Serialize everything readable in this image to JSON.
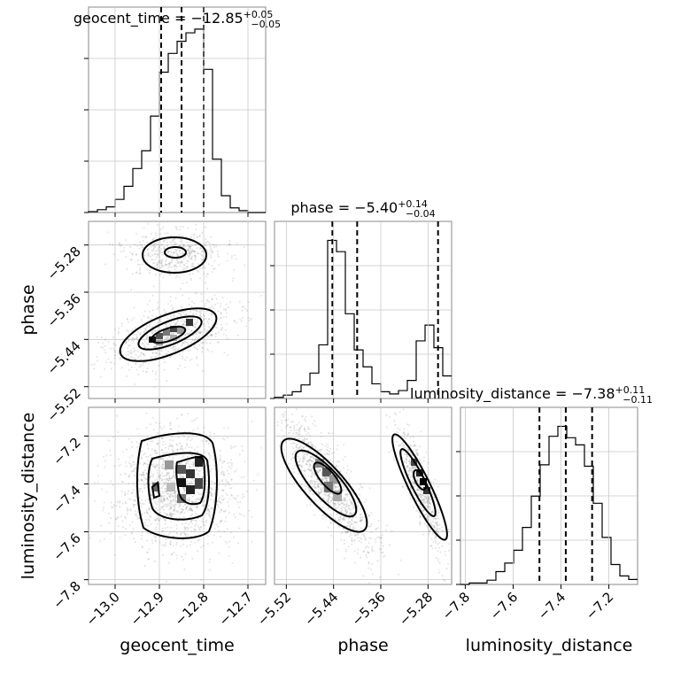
{
  "chart_data": [
    {
      "type": "histogram",
      "panel": "geocent_time",
      "title_param": "geocent_time",
      "title_median": "−12.85",
      "title_plus": "+0.05",
      "title_minus": "−0.05",
      "xlim": [
        -13.06,
        -12.66
      ],
      "quantiles": [
        -12.896,
        -12.85,
        -12.8
      ],
      "bins": [
        -13.06,
        -13.04,
        -13.02,
        -13.0,
        -12.98,
        -12.96,
        -12.94,
        -12.92,
        -12.9,
        -12.88,
        -12.86,
        -12.84,
        -12.82,
        -12.8,
        -12.78,
        -12.76,
        -12.74,
        -12.72,
        -12.7,
        -12.68,
        -12.66
      ],
      "counts": [
        1,
        3,
        6,
        14,
        28,
        47,
        66,
        103,
        150,
        170,
        183,
        192,
        196,
        153,
        57,
        18,
        5,
        2,
        0,
        0
      ],
      "color": "#000000"
    },
    {
      "type": "histogram",
      "panel": "phase",
      "title_param": "phase",
      "title_median": "−5.40",
      "title_plus": "+0.14",
      "title_minus": "−0.04",
      "xlim": [
        -5.54,
        -5.24
      ],
      "quantiles": [
        -5.442,
        -5.4,
        -5.263
      ],
      "bins": [
        -5.54,
        -5.525,
        -5.51,
        -5.495,
        -5.48,
        -5.465,
        -5.45,
        -5.435,
        -5.42,
        -5.405,
        -5.39,
        -5.375,
        -5.36,
        -5.345,
        -5.33,
        -5.315,
        -5.3,
        -5.285,
        -5.27,
        -5.255,
        -5.24
      ],
      "counts": [
        2,
        6,
        12,
        24,
        45,
        95,
        280,
        260,
        150,
        86,
        56,
        26,
        12,
        8,
        14,
        32,
        102,
        130,
        90,
        40
      ],
      "color": "#000000"
    },
    {
      "type": "histogram",
      "panel": "luminosity_distance",
      "title_param": "luminosity_distance",
      "title_median": "−7.38",
      "title_plus": "+0.11",
      "title_minus": "−0.11",
      "xlim": [
        -7.82,
        -7.08
      ],
      "quantiles": [
        -7.49,
        -7.38,
        -7.27
      ],
      "bins": [
        -7.82,
        -7.783,
        -7.746,
        -7.709,
        -7.672,
        -7.635,
        -7.598,
        -7.561,
        -7.524,
        -7.487,
        -7.45,
        -7.413,
        -7.376,
        -7.339,
        -7.302,
        -7.265,
        -7.228,
        -7.191,
        -7.154,
        -7.117,
        -7.08
      ],
      "counts": [
        0,
        2,
        2,
        6,
        18,
        30,
        48,
        80,
        124,
        168,
        208,
        222,
        206,
        196,
        166,
        114,
        66,
        28,
        12,
        7
      ],
      "color": "#000000"
    },
    {
      "type": "scatter",
      "panel": "phase_vs_geocent_time",
      "xlim": [
        -13.06,
        -12.66
      ],
      "ylim": [
        -5.54,
        -5.24
      ],
      "density": "two modes: upper mode around phase −5.28 near geocent_time −12.88 to −12.84; lower mode around phase −5.41 near geocent_time −12.92 to −12.82 with tail toward −13.0"
    },
    {
      "type": "scatter",
      "panel": "luminosity_distance_vs_geocent_time",
      "xlim": [
        -13.06,
        -12.66
      ],
      "ylim": [
        -7.82,
        -7.08
      ],
      "density": "single mode around geocent_time −12.82, luminosity_distance −7.33"
    },
    {
      "type": "scatter",
      "panel": "luminosity_distance_vs_phase",
      "xlim": [
        -5.54,
        -5.24
      ],
      "ylim": [
        -7.82,
        -7.08
      ],
      "density": "two elongated anti-correlated modes near phase −5.44 and −5.27"
    }
  ],
  "axes": {
    "bottom_labels": [
      "geocent_time",
      "phase",
      "luminosity_distance"
    ],
    "left_labels": [
      "phase",
      "luminosity_distance"
    ],
    "geocent_ticks": [
      {
        "v": -13.0,
        "label": "−13.0"
      },
      {
        "v": -12.9,
        "label": "−12.9"
      },
      {
        "v": -12.8,
        "label": "−12.8"
      },
      {
        "v": -12.7,
        "label": "−12.7"
      }
    ],
    "phase_ticks": [
      {
        "v": -5.52,
        "label": "−5.52"
      },
      {
        "v": -5.44,
        "label": "−5.44"
      },
      {
        "v": -5.36,
        "label": "−5.36"
      },
      {
        "v": -5.28,
        "label": "−5.28"
      }
    ],
    "lum_ticks": [
      {
        "v": -7.8,
        "label": "−7.8"
      },
      {
        "v": -7.6,
        "label": "−7.6"
      },
      {
        "v": -7.4,
        "label": "−7.4"
      },
      {
        "v": -7.2,
        "label": "−7.2"
      }
    ]
  }
}
